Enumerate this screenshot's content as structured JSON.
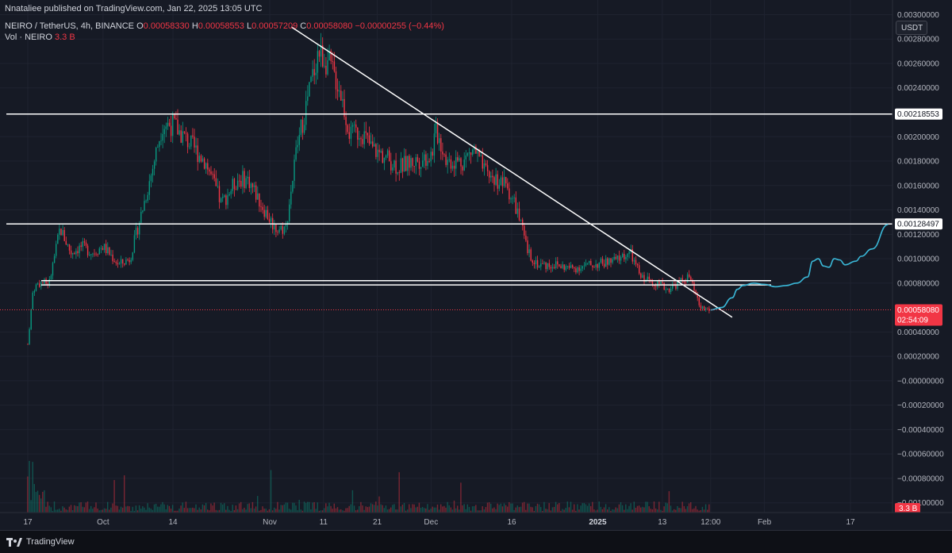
{
  "header": {
    "publisher": "Nnataliee published on TradingView.com, Jan 22, 2025 13:05 UTC",
    "symbol": "NEIRO / TetherUS, 4h, BINANCE",
    "open_label": "O",
    "open": "0.00058330",
    "high_label": "H",
    "high": "0.00058553",
    "low_label": "L",
    "low": "0.00057209",
    "close_label": "C",
    "close": "0.00058080",
    "change": "−0.00000255 (−0.44%)",
    "vol_label": "Vol · NEIRO",
    "vol_value": "3.3 B"
  },
  "currency_button": "USDT",
  "footer": {
    "brand": "TradingView"
  },
  "colors": {
    "up": "#089981",
    "down": "#f23645",
    "projection": "#3ab8d8",
    "level": "#ffffff",
    "background": "#161a25"
  },
  "chart_data": {
    "type": "candlestick",
    "ylim": [
      -0.00108,
      0.00312
    ],
    "y_ticks": [
      {
        "value": 0.003,
        "label": "0.00300000"
      },
      {
        "value": 0.0028,
        "label": "0.00280000"
      },
      {
        "value": 0.0026,
        "label": "0.00260000"
      },
      {
        "value": 0.0024,
        "label": "0.00240000"
      },
      {
        "value": 0.002,
        "label": "0.00200000"
      },
      {
        "value": 0.0018,
        "label": "0.00180000"
      },
      {
        "value": 0.0016,
        "label": "0.00160000"
      },
      {
        "value": 0.0014,
        "label": "0.00140000"
      },
      {
        "value": 0.0012,
        "label": "0.00120000"
      },
      {
        "value": 0.001,
        "label": "0.00100000"
      },
      {
        "value": 0.0008,
        "label": "0.00080000"
      },
      {
        "value": 0.0004,
        "label": "0.00040000"
      },
      {
        "value": 0.0002,
        "label": "0.00020000"
      },
      {
        "value": 0.0,
        "label": "−0.00000000"
      },
      {
        "value": -0.0002,
        "label": "−0.00020000"
      },
      {
        "value": -0.0004,
        "label": "−0.00040000"
      },
      {
        "value": -0.0006,
        "label": "−0.00060000"
      },
      {
        "value": -0.0008,
        "label": "−0.00080000"
      },
      {
        "value": -0.001,
        "label": "−0.00100000"
      }
    ],
    "x_ticks": [
      {
        "date": "2024-09-17",
        "label": "17",
        "bold": false
      },
      {
        "date": "2024-10-01",
        "label": "Oct",
        "bold": false
      },
      {
        "date": "2024-10-14",
        "label": "14",
        "bold": false
      },
      {
        "date": "2024-11-01",
        "label": "Nov",
        "bold": false
      },
      {
        "date": "2024-11-11",
        "label": "11",
        "bold": false
      },
      {
        "date": "2024-11-21",
        "label": "21",
        "bold": false
      },
      {
        "date": "2024-12-01",
        "label": "Dec",
        "bold": false
      },
      {
        "date": "2024-12-16",
        "label": "16",
        "bold": false
      },
      {
        "date": "2025-01-01",
        "label": "2025",
        "bold": true
      },
      {
        "date": "2025-01-13",
        "label": "13",
        "bold": false
      },
      {
        "date": "2025-01-22",
        "label": "12:00",
        "bold": false
      },
      {
        "date": "2025-02-01",
        "label": "Feb",
        "bold": false
      },
      {
        "date": "2025-02-17",
        "label": "17",
        "bold": false
      }
    ],
    "price_path": [
      [
        "2024-09-17",
        0.0003
      ],
      [
        "2024-09-18",
        0.00075
      ],
      [
        "2024-09-19",
        0.0008
      ],
      [
        "2024-09-21",
        0.0008
      ],
      [
        "2024-09-23",
        0.00125
      ],
      [
        "2024-09-25",
        0.00105
      ],
      [
        "2024-09-27",
        0.0011
      ],
      [
        "2024-09-29",
        0.00105
      ],
      [
        "2024-10-01",
        0.0011
      ],
      [
        "2024-10-04",
        0.00095
      ],
      [
        "2024-10-06",
        0.001
      ],
      [
        "2024-10-08",
        0.00135
      ],
      [
        "2024-10-10",
        0.0017
      ],
      [
        "2024-10-12",
        0.0021
      ],
      [
        "2024-10-14",
        0.0021
      ],
      [
        "2024-10-17",
        0.00195
      ],
      [
        "2024-10-20",
        0.0018
      ],
      [
        "2024-10-23",
        0.00145
      ],
      [
        "2024-10-26",
        0.00165
      ],
      [
        "2024-10-28",
        0.00165
      ],
      [
        "2024-10-31",
        0.0014
      ],
      [
        "2024-11-02",
        0.00125
      ],
      [
        "2024-11-04",
        0.00125
      ],
      [
        "2024-11-06",
        0.0019
      ],
      [
        "2024-11-08",
        0.0023
      ],
      [
        "2024-11-10",
        0.0027
      ],
      [
        "2024-11-12",
        0.0026
      ],
      [
        "2024-11-14",
        0.0024
      ],
      [
        "2024-11-16",
        0.002
      ],
      [
        "2024-11-18",
        0.00205
      ],
      [
        "2024-11-20",
        0.0019
      ],
      [
        "2024-11-22",
        0.00185
      ],
      [
        "2024-11-25",
        0.00175
      ],
      [
        "2024-11-28",
        0.0018
      ],
      [
        "2024-12-01",
        0.00185
      ],
      [
        "2024-12-02",
        0.00205
      ],
      [
        "2024-12-04",
        0.0018
      ],
      [
        "2024-12-07",
        0.0018
      ],
      [
        "2024-12-09",
        0.0019
      ],
      [
        "2024-12-11",
        0.0017
      ],
      [
        "2024-12-13",
        0.00165
      ],
      [
        "2024-12-15",
        0.0016
      ],
      [
        "2024-12-17",
        0.0014
      ],
      [
        "2024-12-19",
        0.00105
      ],
      [
        "2024-12-21",
        0.00095
      ],
      [
        "2024-12-24",
        0.00095
      ],
      [
        "2024-12-27",
        0.00092
      ],
      [
        "2024-12-31",
        0.00095
      ],
      [
        "2025-01-04",
        0.00098
      ],
      [
        "2025-01-07",
        0.00105
      ],
      [
        "2025-01-09",
        0.00085
      ],
      [
        "2025-01-12",
        0.0008
      ],
      [
        "2025-01-14",
        0.00075
      ],
      [
        "2025-01-16",
        0.0008
      ],
      [
        "2025-01-18",
        0.00085
      ],
      [
        "2025-01-20",
        0.0006
      ],
      [
        "2025-01-22",
        0.00058
      ]
    ],
    "last_price": {
      "value": 0.0005808,
      "label": "0.00058080",
      "countdown": "02:54:09"
    },
    "horizontal_levels": [
      {
        "value": 0.00218553,
        "label": "0.00218553"
      },
      {
        "value": 0.00128497,
        "label": "0.00128497"
      },
      {
        "value": 0.00082,
        "label": ""
      },
      {
        "value": 0.000785,
        "label": ""
      }
    ],
    "trendline": {
      "start": [
        "2024-11-05",
        0.0029
      ],
      "end": [
        "2025-01-26",
        0.00052
      ]
    },
    "projection": [
      [
        "2025-01-22",
        0.00058
      ],
      [
        "2025-01-24",
        0.0006
      ],
      [
        "2025-01-26",
        0.00068
      ],
      [
        "2025-01-27",
        0.00075
      ],
      [
        "2025-01-28",
        0.00078
      ],
      [
        "2025-01-30",
        0.0008
      ],
      [
        "2025-02-01",
        0.00079
      ],
      [
        "2025-02-03",
        0.00077
      ],
      [
        "2025-02-05",
        0.00078
      ],
      [
        "2025-02-07",
        0.0008
      ],
      [
        "2025-02-09",
        0.00085
      ],
      [
        "2025-02-10",
        0.00098
      ],
      [
        "2025-02-11",
        0.001
      ],
      [
        "2025-02-12",
        0.00094
      ],
      [
        "2025-02-13",
        0.00093
      ],
      [
        "2025-02-14",
        0.001
      ],
      [
        "2025-02-15",
        0.00099
      ],
      [
        "2025-02-16",
        0.00095
      ],
      [
        "2025-02-18",
        0.00098
      ],
      [
        "2025-02-19",
        0.00102
      ],
      [
        "2025-02-21",
        0.00108
      ],
      [
        "2025-02-24",
        0.00128
      ]
    ],
    "volume": {
      "label": "3.3 B",
      "unit": "relative"
    }
  }
}
